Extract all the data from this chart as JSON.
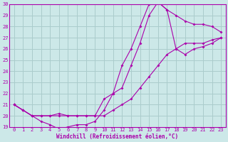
{
  "background_color": "#cce8e8",
  "grid_color": "#aacccc",
  "line_color": "#aa00aa",
  "xlim": [
    -0.5,
    23.5
  ],
  "ylim": [
    19,
    30
  ],
  "yticks": [
    19,
    20,
    21,
    22,
    23,
    24,
    25,
    26,
    27,
    28,
    29,
    30
  ],
  "xticks": [
    0,
    1,
    2,
    3,
    4,
    5,
    6,
    7,
    8,
    9,
    10,
    11,
    12,
    13,
    14,
    15,
    16,
    17,
    18,
    19,
    20,
    21,
    22,
    23
  ],
  "xlabel": "Windchill (Refroidissement éolien,°C)",
  "line1_x": [
    0,
    1,
    2,
    3,
    4,
    5,
    6,
    7,
    8,
    9,
    10,
    11,
    12,
    13,
    14,
    15,
    16,
    17,
    18,
    19,
    20,
    21,
    22,
    23
  ],
  "line1_y": [
    21.0,
    20.5,
    20.0,
    20.0,
    20.0,
    20.0,
    20.0,
    20.0,
    20.0,
    20.0,
    20.0,
    20.5,
    21.0,
    21.5,
    22.5,
    23.5,
    24.5,
    25.5,
    26.0,
    26.5,
    26.5,
    26.5,
    26.8,
    27.0
  ],
  "line2_x": [
    0,
    1,
    2,
    3,
    4,
    5,
    6,
    7,
    8,
    9,
    10,
    11,
    12,
    13,
    14,
    15,
    16,
    17,
    18,
    19,
    20,
    21,
    22,
    23
  ],
  "line2_y": [
    21.0,
    20.5,
    20.0,
    19.5,
    19.2,
    18.8,
    19.0,
    19.2,
    19.2,
    19.5,
    20.5,
    22.0,
    24.5,
    26.0,
    28.0,
    30.0,
    30.2,
    29.5,
    29.0,
    28.5,
    28.2,
    28.2,
    28.0,
    27.5
  ],
  "line3_x": [
    0,
    1,
    2,
    3,
    4,
    5,
    6,
    7,
    8,
    9,
    10,
    11,
    12,
    13,
    14,
    15,
    16,
    17,
    18,
    19,
    20,
    21,
    22,
    23
  ],
  "line3_y": [
    21.0,
    20.5,
    20.0,
    20.0,
    20.0,
    20.2,
    20.0,
    20.0,
    20.0,
    20.0,
    21.5,
    22.0,
    22.5,
    24.5,
    26.5,
    29.0,
    30.2,
    29.5,
    26.0,
    25.5,
    26.0,
    26.2,
    26.5,
    27.0
  ]
}
